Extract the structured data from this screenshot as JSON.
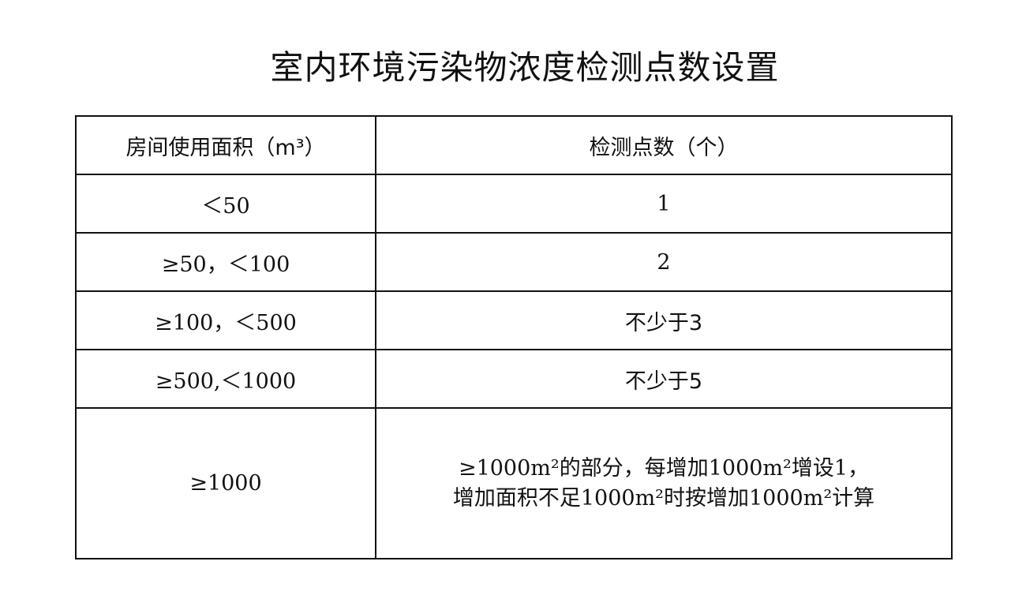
{
  "title": "室内环境污染物浓度检测点数设置",
  "table": {
    "headers": [
      "房间使用面积（m³）",
      "检测点数（个）"
    ],
    "rows": [
      {
        "area": "＜50",
        "points": "1"
      },
      {
        "area": "≥50，＜100",
        "points": "2"
      },
      {
        "area": "≥100，＜500",
        "points": "不少于3"
      },
      {
        "area": "≥500,＜1000",
        "points": "不少于5"
      },
      {
        "area": "≥1000",
        "points_line1": "≥1000m²的部分，每增加1000m²增设1，",
        "points_line2": "增加面积不足1000m²时按增加1000m²计算"
      }
    ]
  }
}
